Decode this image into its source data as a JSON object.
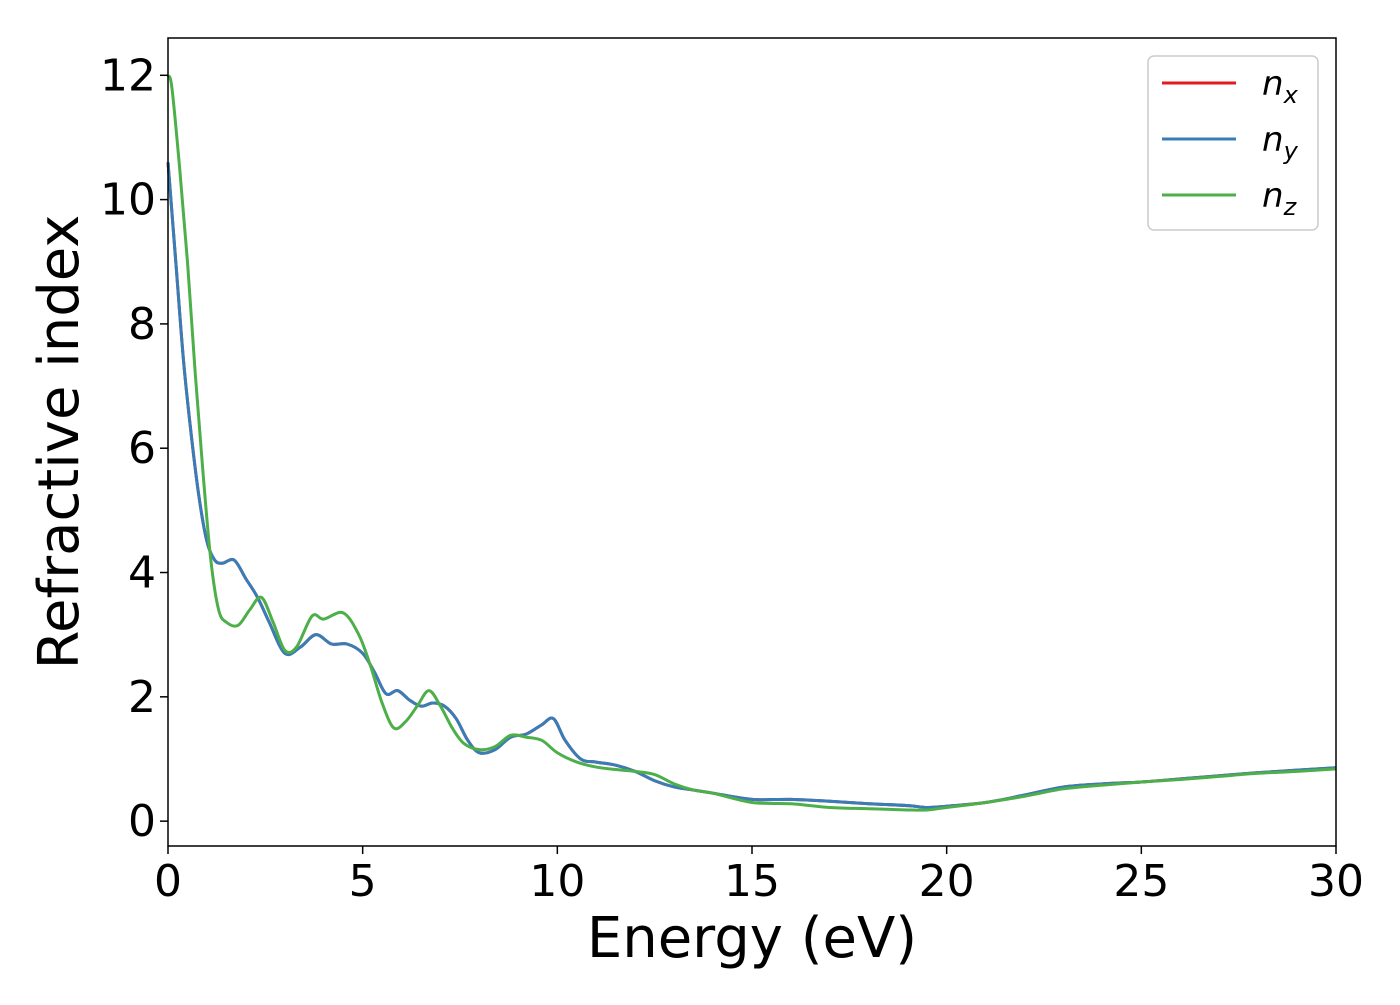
{
  "chart_data": {
    "type": "line",
    "title": "",
    "xlabel": "Energy (eV)",
    "ylabel": "Refractive index",
    "xlim": [
      0,
      30
    ],
    "ylim": [
      -0.4,
      12.6
    ],
    "xticks": [
      0,
      5,
      10,
      15,
      20,
      25,
      30
    ],
    "yticks": [
      0,
      2,
      4,
      6,
      8,
      10,
      12
    ],
    "grid": false,
    "legend": "top-right",
    "series": [
      {
        "name": "n",
        "subscript": "x",
        "color": "#e41a1c",
        "x": [
          0,
          0.2,
          0.4,
          0.6,
          0.8,
          1.0,
          1.2,
          1.4,
          1.7,
          2.0,
          2.3,
          2.6,
          3.0,
          3.4,
          3.8,
          4.2,
          4.6,
          5.0,
          5.3,
          5.6,
          5.9,
          6.2,
          6.5,
          6.8,
          7.1,
          7.4,
          7.7,
          8.0,
          8.4,
          8.8,
          9.2,
          9.6,
          9.9,
          10.2,
          10.6,
          11.0,
          11.5,
          12.0,
          12.5,
          13.0,
          13.5,
          14.0,
          15.0,
          16.0,
          17.0,
          18.0,
          19.0,
          19.5,
          20.0,
          21.0,
          22.0,
          23.0,
          24.0,
          25.0,
          26.0,
          27.0,
          28.0,
          29.0,
          30.0
        ],
        "values": [
          10.6,
          9.0,
          7.4,
          6.2,
          5.2,
          4.5,
          4.2,
          4.15,
          4.2,
          3.9,
          3.6,
          3.2,
          2.7,
          2.8,
          3.0,
          2.85,
          2.85,
          2.7,
          2.4,
          2.05,
          2.1,
          1.95,
          1.85,
          1.9,
          1.85,
          1.65,
          1.3,
          1.1,
          1.15,
          1.35,
          1.4,
          1.55,
          1.65,
          1.3,
          1.0,
          0.95,
          0.9,
          0.8,
          0.65,
          0.55,
          0.5,
          0.45,
          0.35,
          0.35,
          0.32,
          0.28,
          0.25,
          0.22,
          0.24,
          0.3,
          0.42,
          0.55,
          0.6,
          0.63,
          0.68,
          0.73,
          0.78,
          0.82,
          0.86
        ]
      },
      {
        "name": "n",
        "subscript": "y",
        "color": "#377eb8",
        "x": [
          0,
          0.2,
          0.4,
          0.6,
          0.8,
          1.0,
          1.2,
          1.4,
          1.7,
          2.0,
          2.3,
          2.6,
          3.0,
          3.4,
          3.8,
          4.2,
          4.6,
          5.0,
          5.3,
          5.6,
          5.9,
          6.2,
          6.5,
          6.8,
          7.1,
          7.4,
          7.7,
          8.0,
          8.4,
          8.8,
          9.2,
          9.6,
          9.9,
          10.2,
          10.6,
          11.0,
          11.5,
          12.0,
          12.5,
          13.0,
          13.5,
          14.0,
          15.0,
          16.0,
          17.0,
          18.0,
          19.0,
          19.5,
          20.0,
          21.0,
          22.0,
          23.0,
          24.0,
          25.0,
          26.0,
          27.0,
          28.0,
          29.0,
          30.0
        ],
        "values": [
          10.6,
          9.0,
          7.4,
          6.2,
          5.2,
          4.5,
          4.2,
          4.15,
          4.2,
          3.9,
          3.6,
          3.2,
          2.7,
          2.8,
          3.0,
          2.85,
          2.85,
          2.7,
          2.4,
          2.05,
          2.1,
          1.95,
          1.85,
          1.9,
          1.85,
          1.65,
          1.3,
          1.1,
          1.15,
          1.35,
          1.4,
          1.55,
          1.65,
          1.3,
          1.0,
          0.95,
          0.9,
          0.8,
          0.65,
          0.55,
          0.5,
          0.45,
          0.35,
          0.35,
          0.32,
          0.28,
          0.25,
          0.22,
          0.24,
          0.3,
          0.42,
          0.55,
          0.6,
          0.63,
          0.68,
          0.73,
          0.78,
          0.82,
          0.86
        ]
      },
      {
        "name": "n",
        "subscript": "z",
        "color": "#4daf4a",
        "x": [
          0,
          0.1,
          0.3,
          0.5,
          0.7,
          0.9,
          1.1,
          1.3,
          1.5,
          1.8,
          2.1,
          2.4,
          2.7,
          3.0,
          3.3,
          3.7,
          4.0,
          4.5,
          4.9,
          5.2,
          5.5,
          5.8,
          6.1,
          6.4,
          6.7,
          7.0,
          7.3,
          7.6,
          8.0,
          8.4,
          8.8,
          9.2,
          9.6,
          10.0,
          10.5,
          11.0,
          11.5,
          12.0,
          12.5,
          13.0,
          13.5,
          14.0,
          15.0,
          16.0,
          17.0,
          18.0,
          19.0,
          19.5,
          20.0,
          21.0,
          22.0,
          23.0,
          24.0,
          25.0,
          26.0,
          27.0,
          28.0,
          29.0,
          30.0
        ],
        "values": [
          12.0,
          11.8,
          10.5,
          9.0,
          7.2,
          5.6,
          4.2,
          3.4,
          3.2,
          3.15,
          3.4,
          3.6,
          3.2,
          2.75,
          2.8,
          3.3,
          3.25,
          3.35,
          3.0,
          2.5,
          1.9,
          1.5,
          1.6,
          1.85,
          2.1,
          1.85,
          1.5,
          1.25,
          1.15,
          1.2,
          1.38,
          1.35,
          1.3,
          1.1,
          0.95,
          0.87,
          0.83,
          0.8,
          0.75,
          0.6,
          0.5,
          0.45,
          0.3,
          0.28,
          0.22,
          0.2,
          0.18,
          0.18,
          0.22,
          0.3,
          0.4,
          0.52,
          0.58,
          0.63,
          0.67,
          0.72,
          0.77,
          0.8,
          0.84
        ]
      }
    ]
  }
}
